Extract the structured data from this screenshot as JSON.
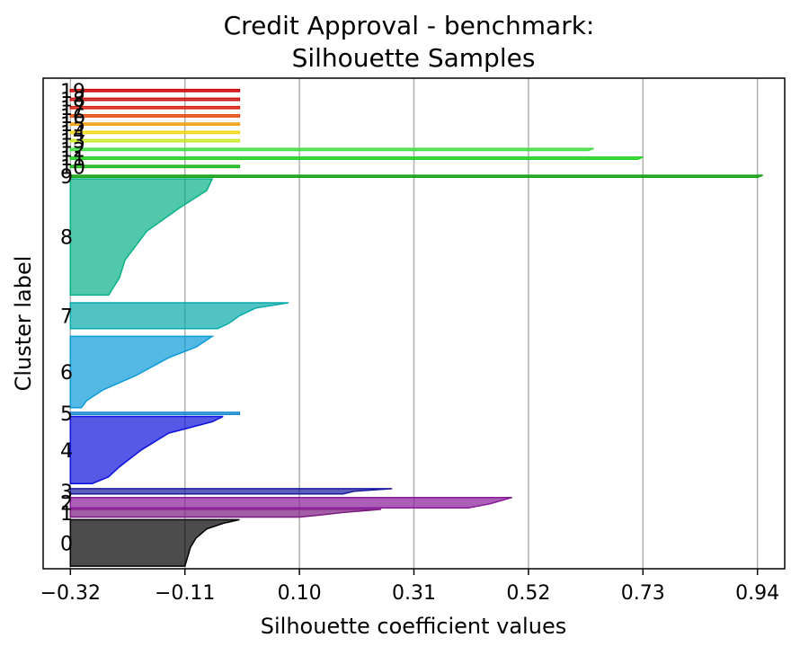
{
  "chart_data": {
    "type": "silhouette",
    "title_line1": "Credit Approval - benchmark:",
    "title_line2": "Silhouette Samples",
    "xlabel": "Silhouette coefficient values",
    "ylabel": "Cluster label",
    "xlim": [
      -0.37,
      0.99
    ],
    "xticks": [
      -0.32,
      -0.11,
      0.1,
      0.31,
      0.52,
      0.73,
      0.94
    ],
    "xtick_labels": [
      "−0.32",
      "−0.11",
      "0.10",
      "0.31",
      "0.52",
      "0.73",
      "0.94"
    ],
    "grid": "vertical",
    "baseline": -0.32,
    "clusters": [
      {
        "label": "0",
        "color": "#000000",
        "range": [
          0.5,
          9.5
        ],
        "profile": [
          [
            0.0,
            -0.01
          ],
          [
            0.08,
            -0.04
          ],
          [
            0.2,
            -0.07
          ],
          [
            0.4,
            -0.09
          ],
          [
            0.6,
            -0.1
          ],
          [
            0.8,
            -0.105
          ],
          [
            1.0,
            -0.11
          ]
        ]
      },
      {
        "label": "1",
        "color": "#7c1a82",
        "range": [
          10.0,
          11.5
        ],
        "profile": [
          [
            0.0,
            0.25
          ],
          [
            0.4,
            0.18
          ],
          [
            0.8,
            0.13
          ],
          [
            1.0,
            0.1
          ]
        ]
      },
      {
        "label": "2",
        "color": "#8a1a9b",
        "range": [
          11.8,
          13.8
        ],
        "profile": [
          [
            0.0,
            0.49
          ],
          [
            0.3,
            0.47
          ],
          [
            0.6,
            0.45
          ],
          [
            1.0,
            0.41
          ]
        ]
      },
      {
        "label": "3",
        "color": "#1a1aa0",
        "range": [
          14.5,
          15.5
        ],
        "profile": [
          [
            0.0,
            0.27
          ],
          [
            0.5,
            0.2
          ],
          [
            1.0,
            0.18
          ]
        ]
      },
      {
        "label": "4",
        "color": "#0d12dc",
        "range": [
          16.5,
          29.5
        ],
        "profile": [
          [
            0.0,
            -0.04
          ],
          [
            0.08,
            -0.06
          ],
          [
            0.25,
            -0.14
          ],
          [
            0.5,
            -0.19
          ],
          [
            0.75,
            -0.23
          ],
          [
            0.9,
            -0.25
          ],
          [
            1.0,
            -0.28
          ]
        ]
      },
      {
        "label": "5",
        "color": "#1a8ad0",
        "range": [
          29.9,
          30.3
        ],
        "profile": [
          [
            0.0,
            -0.01
          ],
          [
            1.0,
            -0.01
          ]
        ]
      },
      {
        "label": "6",
        "color": "#0a9ad8",
        "range": [
          31.2,
          45.0
        ],
        "profile": [
          [
            0.0,
            -0.06
          ],
          [
            0.15,
            -0.09
          ],
          [
            0.3,
            -0.14
          ],
          [
            0.55,
            -0.2
          ],
          [
            0.75,
            -0.26
          ],
          [
            0.9,
            -0.29
          ],
          [
            1.0,
            -0.3
          ]
        ]
      },
      {
        "label": "7",
        "color": "#08aaaa",
        "range": [
          46.5,
          51.5
        ],
        "profile": [
          [
            0.0,
            0.08
          ],
          [
            0.2,
            0.02
          ],
          [
            0.5,
            -0.01
          ],
          [
            0.8,
            -0.03
          ],
          [
            1.0,
            -0.05
          ]
        ]
      },
      {
        "label": "8",
        "color": "#08b088",
        "range": [
          53.0,
          75.5
        ],
        "profile": [
          [
            0.0,
            -0.06
          ],
          [
            0.1,
            -0.07
          ],
          [
            0.25,
            -0.12
          ],
          [
            0.45,
            -0.18
          ],
          [
            0.7,
            -0.22
          ],
          [
            0.85,
            -0.23
          ],
          [
            1.0,
            -0.25
          ]
        ]
      },
      {
        "label": "9",
        "color": "#10a010",
        "range": [
          75.8,
          76.2
        ],
        "profile": [
          [
            0.0,
            0.95
          ],
          [
            1.0,
            0.94
          ]
        ]
      },
      {
        "label": "10",
        "color": "#18b818",
        "range": [
          77.7,
          78.1
        ],
        "profile": [
          [
            0.0,
            -0.01
          ],
          [
            1.0,
            -0.01
          ]
        ]
      },
      {
        "label": "11",
        "color": "#20d020",
        "range": [
          79.3,
          79.7
        ],
        "profile": [
          [
            0.0,
            0.73
          ],
          [
            1.0,
            0.72
          ]
        ]
      },
      {
        "label": "12",
        "color": "#40e040",
        "range": [
          81.0,
          81.4
        ],
        "profile": [
          [
            0.0,
            0.64
          ],
          [
            1.0,
            0.63
          ]
        ]
      },
      {
        "label": "13",
        "color": "#c8e828",
        "range": [
          82.7,
          83.1
        ],
        "profile": [
          [
            0.0,
            -0.01
          ],
          [
            1.0,
            -0.01
          ]
        ]
      },
      {
        "label": "14",
        "color": "#f0d818",
        "range": [
          84.3,
          84.7
        ],
        "profile": [
          [
            0.0,
            -0.01
          ],
          [
            1.0,
            -0.01
          ]
        ]
      },
      {
        "label": "15",
        "color": "#f0a010",
        "range": [
          85.9,
          86.3
        ],
        "profile": [
          [
            0.0,
            -0.01
          ],
          [
            1.0,
            -0.01
          ]
        ]
      },
      {
        "label": "16",
        "color": "#e84a10",
        "range": [
          87.5,
          87.9
        ],
        "profile": [
          [
            0.0,
            -0.01
          ],
          [
            1.0,
            -0.01
          ]
        ]
      },
      {
        "label": "17",
        "color": "#d82010",
        "range": [
          89.1,
          89.5
        ],
        "profile": [
          [
            0.0,
            -0.01
          ],
          [
            1.0,
            -0.01
          ]
        ]
      },
      {
        "label": "18",
        "color": "#cc1010",
        "range": [
          90.7,
          91.1
        ],
        "profile": [
          [
            0.0,
            -0.01
          ],
          [
            1.0,
            -0.01
          ]
        ]
      },
      {
        "label": "19",
        "color": "#cc0000",
        "range": [
          92.4,
          92.8
        ],
        "profile": [
          [
            0.0,
            -0.01
          ],
          [
            1.0,
            -0.01
          ]
        ]
      }
    ]
  }
}
